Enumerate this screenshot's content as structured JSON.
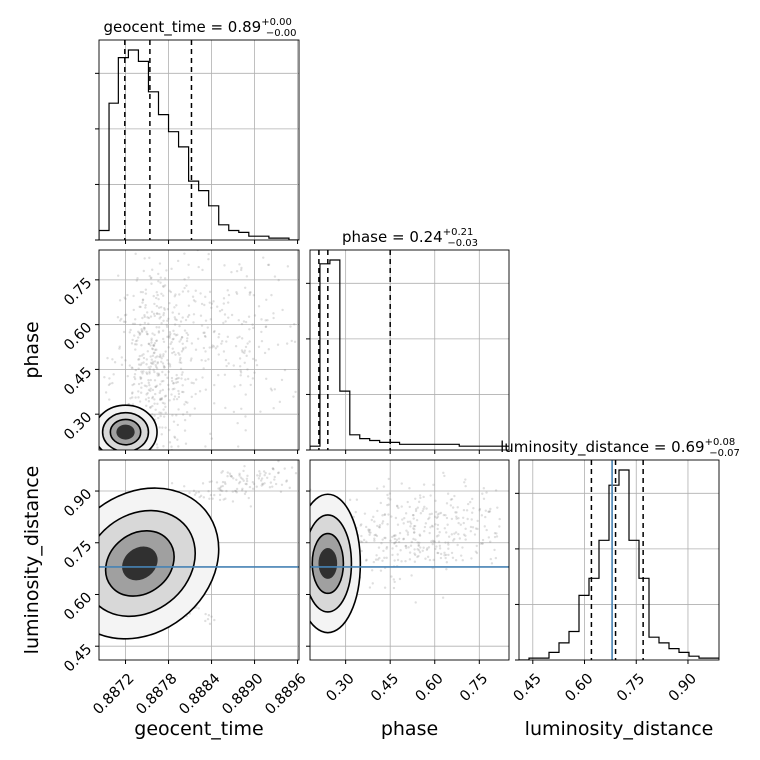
{
  "chart_data": {
    "type": "corner",
    "parameters": [
      "geocent_time",
      "phase",
      "luminosity_distance"
    ],
    "axis_labels": {
      "geocent_time": "geocent_time",
      "phase": "phase",
      "luminosity_distance": "luminosity_distance"
    },
    "ranges": {
      "geocent_time": [
        0.88683,
        0.88962
      ],
      "phase": [
        0.18,
        0.85
      ],
      "luminosity_distance": [
        0.41,
        0.99
      ]
    },
    "ticks": {
      "geocent_time": [
        0.8872,
        0.8878,
        0.8884,
        0.889,
        0.8896
      ],
      "phase": [
        0.3,
        0.45,
        0.6,
        0.75
      ],
      "luminosity_distance": [
        0.45,
        0.6,
        0.75,
        0.9
      ]
    },
    "tick_labels": {
      "geocent_time": [
        "0.8872",
        "0.8878",
        "0.8884",
        "0.8890",
        "0.8896"
      ],
      "phase": [
        "0.30",
        "0.45",
        "0.60",
        "0.75"
      ],
      "luminosity_distance": [
        "0.45",
        "0.60",
        "0.75",
        "0.90"
      ]
    },
    "titles": {
      "geocent_time": {
        "name": "geocent_time",
        "value": "0.89",
        "plus": "+0.00",
        "minus": "−0.00"
      },
      "phase": {
        "name": "phase",
        "value": "0.24",
        "plus": "+0.21",
        "minus": "−0.03"
      },
      "luminosity_distance": {
        "name": "luminosity_distance",
        "value": "0.69",
        "plus": "+0.08",
        "minus": "−0.07"
      }
    },
    "histograms": {
      "geocent_time": {
        "edges": [
          0.88683,
          0.88697,
          0.8871,
          0.88724,
          0.88738,
          0.88752,
          0.88766,
          0.8878,
          0.88794,
          0.88808,
          0.88822,
          0.88836,
          0.8885,
          0.88864,
          0.88878,
          0.88892,
          0.88906,
          0.8892,
          0.88934,
          0.88948,
          0.88962
        ],
        "counts": [
          0.05,
          0.72,
          0.96,
          1.0,
          0.94,
          0.78,
          0.66,
          0.57,
          0.49,
          0.31,
          0.26,
          0.18,
          0.08,
          0.05,
          0.04,
          0.02,
          0.02,
          0.01,
          0.01,
          0.0
        ],
        "quantiles": [
          0.88719,
          0.88754,
          0.88812
        ]
      },
      "phase": {
        "edges": [
          0.18,
          0.2135,
          0.247,
          0.2805,
          0.314,
          0.3475,
          0.381,
          0.4145,
          0.448,
          0.4815,
          0.515,
          0.5485,
          0.582,
          0.6155,
          0.649,
          0.6825,
          0.716,
          0.7495,
          0.783,
          0.8165,
          0.85
        ],
        "counts": [
          0.02,
          0.98,
          1.0,
          0.31,
          0.08,
          0.06,
          0.05,
          0.04,
          0.04,
          0.03,
          0.03,
          0.03,
          0.03,
          0.03,
          0.03,
          0.02,
          0.02,
          0.02,
          0.02,
          0.02
        ],
        "quantiles": [
          0.21,
          0.24,
          0.45
        ]
      },
      "luminosity_distance": {
        "edges": [
          0.41,
          0.439,
          0.468,
          0.497,
          0.526,
          0.555,
          0.584,
          0.613,
          0.642,
          0.671,
          0.7,
          0.729,
          0.758,
          0.787,
          0.816,
          0.845,
          0.874,
          0.903,
          0.932,
          0.961,
          0.99
        ],
        "counts": [
          0.0,
          0.01,
          0.01,
          0.04,
          0.09,
          0.15,
          0.34,
          0.43,
          0.63,
          0.92,
          1.0,
          0.63,
          0.43,
          0.12,
          0.09,
          0.06,
          0.04,
          0.02,
          0.01,
          0.01
        ],
        "quantiles": [
          0.62,
          0.69,
          0.77
        ],
        "truth": 0.68
      }
    },
    "truths": {
      "luminosity_distance": 0.68
    },
    "contour_panels": [
      {
        "x": "geocent_time",
        "y": "phase"
      },
      {
        "x": "geocent_time",
        "y": "luminosity_distance"
      },
      {
        "x": "phase",
        "y": "luminosity_distance"
      }
    ],
    "grid": true,
    "colors": {
      "line": "#000000",
      "truth": "#4682b4",
      "points": "#808080",
      "grid": "#b0b0b0"
    }
  }
}
